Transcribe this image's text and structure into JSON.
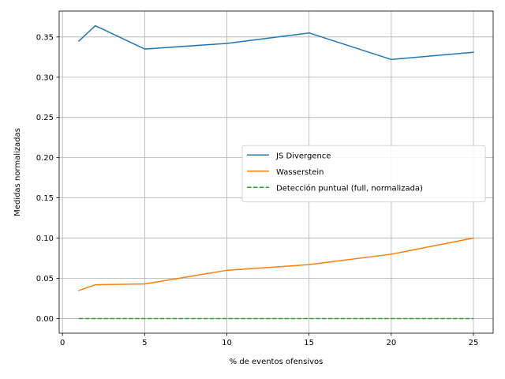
{
  "chart_data": {
    "type": "line",
    "x": [
      1,
      2,
      5,
      10,
      15,
      20,
      25
    ],
    "series": [
      {
        "name": "JS Divergence",
        "values": [
          0.345,
          0.364,
          0.335,
          0.342,
          0.355,
          0.322,
          0.331
        ],
        "color": "#1f77b4",
        "dash": "solid"
      },
      {
        "name": "Wasserstein",
        "values": [
          0.035,
          0.042,
          0.043,
          0.06,
          0.067,
          0.08,
          0.1
        ],
        "color": "#ff7f0e",
        "dash": "solid"
      },
      {
        "name": "Detección puntual (full, normalizada)",
        "values": [
          0.0,
          0.0,
          0.0,
          0.0,
          0.0,
          0.0,
          0.0
        ],
        "color": "#2ca02c",
        "dash": "dashed"
      }
    ],
    "xlabel": "% de eventos ofensivos",
    "ylabel": "Medidas normalizadas",
    "xlim": [
      -0.2,
      26.2
    ],
    "ylim": [
      -0.0182,
      0.3822
    ],
    "xticks": [
      0,
      5,
      10,
      15,
      20,
      25
    ],
    "xtick_labels": [
      "0",
      "5",
      "10",
      "15",
      "20",
      "25"
    ],
    "yticks": [
      0.0,
      0.05,
      0.1,
      0.15,
      0.2,
      0.25,
      0.3,
      0.35
    ],
    "ytick_labels": [
      "0.00",
      "0.05",
      "0.10",
      "0.15",
      "0.20",
      "0.25",
      "0.30",
      "0.35"
    ],
    "grid": true,
    "legend_position": "center-right"
  }
}
